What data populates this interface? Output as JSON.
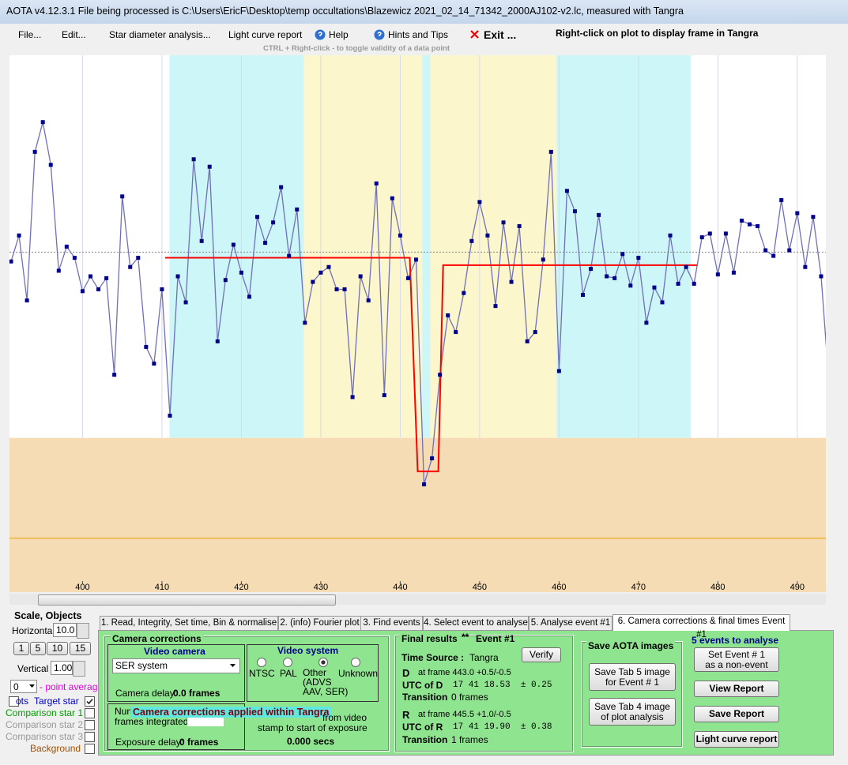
{
  "window": {
    "title": "AOTA v4.12.3.1    File being processed is C:\\Users\\EricF\\Desktop\\temp occultations\\Blazewicz 2021_02_14_71342_2000AJ102-v2.lc, measured with Tangra"
  },
  "menu": {
    "items": [
      "File...",
      "Edit...",
      "Star diameter analysis...",
      "Light curve report",
      "Help",
      "Hints and Tips",
      "Exit ..."
    ],
    "hint": "Right-click on plot to display frame in Tangra",
    "subhint": "CTRL + Right-click  -  to toggle validity of a data point"
  },
  "plot": {
    "type": "line",
    "xlim": [
      390.8,
      493.6
    ],
    "ylim": [
      -0.83,
      2.06
    ],
    "xticks": [
      400,
      410,
      420,
      430,
      440,
      450,
      460,
      470,
      480,
      490
    ],
    "baseline": 1.0,
    "reference_line": -0.54,
    "regions": [
      {
        "start": 410.95,
        "end": 427.86,
        "color": "#ccf6f8"
      },
      {
        "start": 427.86,
        "end": 442.79,
        "color": "#fbf6cc"
      },
      {
        "start": 442.79,
        "end": 443.78,
        "color": "#ccf6f8"
      },
      {
        "start": 443.78,
        "end": 459.7,
        "color": "#fbf6cc"
      },
      {
        "start": 459.7,
        "end": 476.6,
        "color": "#ccf6f8"
      }
    ],
    "lower_color": "#f5dcb4",
    "reference_color": "#e8a000",
    "series": [
      {
        "color": "#7070b8",
        "marker_color": "#00008b",
        "x": [
          391,
          392,
          393,
          394,
          395,
          396,
          397,
          398,
          399,
          400,
          401,
          402,
          403,
          404,
          405,
          406,
          407,
          408,
          409,
          410,
          411,
          412,
          413,
          414,
          415,
          416,
          417,
          418,
          419,
          420,
          421,
          422,
          423,
          424,
          425,
          426,
          427,
          428,
          429,
          430,
          431,
          432,
          433,
          434,
          435,
          436,
          437,
          438,
          439,
          440,
          441,
          442,
          443,
          444,
          445,
          446,
          447,
          448,
          449,
          450,
          451,
          452,
          453,
          454,
          455,
          456,
          457,
          458,
          459,
          460,
          461,
          462,
          463,
          464,
          465,
          466,
          467,
          468,
          469,
          470,
          471,
          472,
          473,
          474,
          475,
          476,
          477,
          478,
          479,
          480,
          481,
          482,
          483,
          484,
          485,
          486,
          487,
          488,
          489,
          490,
          491,
          492,
          493,
          494
        ],
        "values": [
          0.95,
          1.09,
          0.74,
          1.54,
          1.7,
          1.47,
          0.9,
          1.03,
          0.97,
          0.79,
          0.87,
          0.8,
          0.86,
          0.34,
          1.3,
          0.92,
          0.97,
          0.49,
          0.4,
          0.8,
          0.12,
          0.87,
          0.73,
          1.5,
          1.06,
          1.46,
          0.52,
          0.85,
          1.04,
          0.89,
          0.76,
          1.19,
          1.05,
          1.16,
          1.35,
          0.98,
          1.23,
          0.62,
          0.84,
          0.89,
          0.92,
          0.8,
          0.8,
          0.22,
          0.87,
          0.74,
          1.37,
          0.23,
          1.29,
          1.09,
          0.86,
          0.96,
          -0.25,
          -0.11,
          0.34,
          0.66,
          0.57,
          0.78,
          1.06,
          1.27,
          1.09,
          0.71,
          1.16,
          0.84,
          1.14,
          0.52,
          0.57,
          0.96,
          1.54,
          0.36,
          1.33,
          1.22,
          0.77,
          0.91,
          1.2,
          0.87,
          0.86,
          0.99,
          0.82,
          0.97,
          0.62,
          0.81,
          0.73,
          1.09,
          0.83,
          0.92,
          0.83,
          1.08,
          1.1,
          0.88,
          1.1,
          0.89,
          1.17,
          1.15,
          1.14,
          1.01,
          0.98,
          1.28,
          1.01,
          1.21,
          0.92,
          1.19,
          0.87,
          0.29
        ]
      },
      {
        "color": "#ff0000",
        "x": [
          410.4,
          441.2,
          442.2,
          444.8,
          445.4,
          477.4
        ],
        "values": [
          0.97,
          0.97,
          -0.18,
          -0.18,
          0.93,
          0.93
        ]
      }
    ]
  },
  "left": {
    "title": "Scale, Objects",
    "horizontal_label": "Horizontal",
    "horizontal_value": "10.0",
    "buttons": [
      "1",
      "5",
      "10",
      "15"
    ],
    "vertical_label": "Vertical",
    "vertical_value": "1.00",
    "average_value": "0",
    "average_label": "- point average",
    "objects": [
      {
        "prefix": "ots",
        "label": "Target star",
        "checked": true
      },
      {
        "label": "Comparison star 1",
        "checked": false
      },
      {
        "label": "Comparison star 2",
        "checked": false
      },
      {
        "label": "Comparison star 3",
        "checked": false
      },
      {
        "label": "Background",
        "checked": false
      }
    ]
  },
  "tabs": [
    "1.  Read, Integrity, Set time, Bin & normalise",
    "2. (info)  Fourier plot",
    "3. Find events",
    "4. Select event to analyse",
    "5. Analyse event #1",
    "6. Camera corrections & final times Event #1"
  ],
  "camera": {
    "title": "Camera corrections",
    "video_camera": "Video camera",
    "camera_select": "SER system",
    "camera_delay_label": "Camera delay:",
    "camera_delay": "0.0 frames",
    "video_system": "Video system",
    "systems": [
      "NTSC",
      "PAL",
      "Other\n(ADVS\nAAV, SER)",
      "Unknown"
    ],
    "overlay": "Camera corrections applied within Tangra",
    "num": "Num",
    "frames_integrated": "frames integrated",
    "from_video": "from video",
    "stamp": "stamp to start of exposure",
    "exposure_delay_label": "Exposure delay:",
    "exposure_delay": "0 frames",
    "secs": "0.000 secs"
  },
  "results": {
    "title": "Final results",
    "stars": "**",
    "event": "Event #1",
    "time_source_label": "Time Source :",
    "time_source": "Tangra",
    "verify": "Verify",
    "d_label": "D",
    "d_frame": "at frame 443.0  +0.5/-0.5",
    "utc_d_label": "UTC of D",
    "utc_d": "17 41 18.53  ± 0.25",
    "transition_label_d": "Transition",
    "transition_d": "0 frames",
    "r_label": "R",
    "r_frame": "at frame 445.5  +1.0/-0.5",
    "utc_r_label": "UTC of R",
    "utc_r": "17 41 19.90  ± 0.38",
    "transition_label_r": "Transition",
    "transition_r": "1 frames"
  },
  "save": {
    "title": "Save AOTA images",
    "tab5": "Save Tab 5 image\nfor Event # 1",
    "tab4": "Save Tab 4 image\nof plot analysis"
  },
  "actions": {
    "events": "5  events to analyse",
    "non_event": "Set Event # 1\nas a non-event",
    "view": "View Report",
    "save": "Save Report",
    "lc": "Light curve report"
  }
}
